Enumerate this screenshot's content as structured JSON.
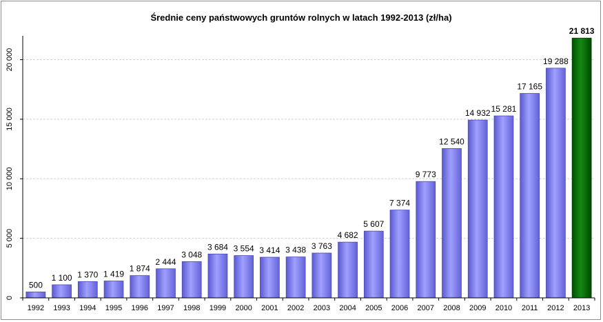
{
  "chart_data": {
    "type": "bar",
    "title": "Średnie ceny państwowych gruntów rolnych w latach 1992-2013 (zł/ha)",
    "xlabel": "",
    "ylabel": "",
    "ylim": [
      0,
      22000
    ],
    "grid": true,
    "y_ticks": [
      "0",
      "5 000",
      "10 000",
      "15 000",
      "20 000"
    ],
    "y_tick_values": [
      0,
      5000,
      10000,
      15000,
      20000
    ],
    "categories": [
      "1992",
      "1993",
      "1994",
      "1995",
      "1996",
      "1997",
      "1998",
      "1999",
      "2000",
      "2001",
      "2002",
      "2003",
      "2004",
      "2005",
      "2006",
      "2007",
      "2008",
      "2009",
      "2010",
      "2011",
      "2012",
      "2013"
    ],
    "values": [
      500,
      1100,
      1370,
      1419,
      1874,
      2444,
      3048,
      3684,
      3554,
      3414,
      3438,
      3763,
      4682,
      5607,
      7374,
      9773,
      12540,
      14932,
      15281,
      17165,
      19288,
      21813
    ],
    "value_labels": [
      "500",
      "1 100",
      "1 370",
      "1 419",
      "1 874",
      "2 444",
      "3 048",
      "3 684",
      "3 554",
      "3 414",
      "3 438",
      "3 763",
      "4 682",
      "5 607",
      "7 374",
      "9 773",
      "12 540",
      "14 932",
      "15 281",
      "17 165",
      "19 288",
      "21 813"
    ],
    "highlight_index": 21,
    "colors": {
      "bar": "#8080f0",
      "bar_dark": "#4a4ab8",
      "highlight": "#0a6a0a",
      "highlight_dark": "#003c00",
      "grid": "#d0d0d0",
      "axis": "#000000"
    }
  }
}
